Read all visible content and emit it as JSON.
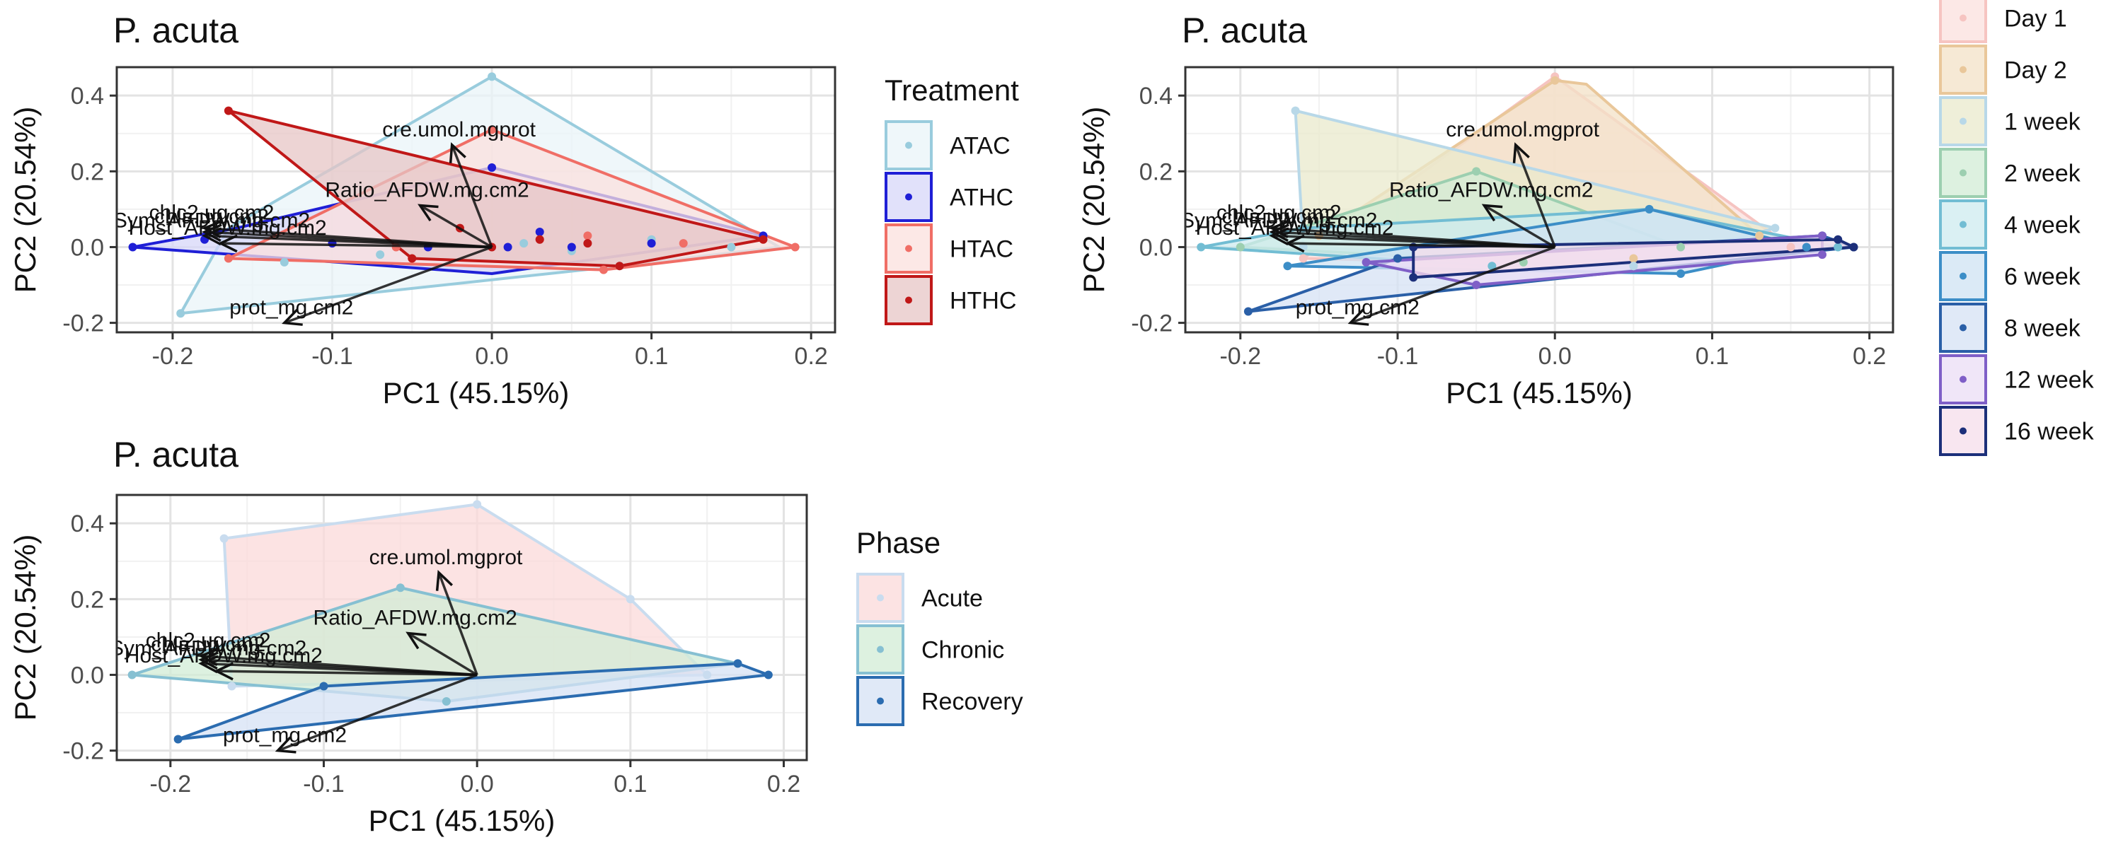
{
  "chart_data": [
    {
      "type": "scatter",
      "title": "P. acuta",
      "xlabel": "PC1 (45.15%)",
      "ylabel": "PC2 (20.54%)",
      "xlim": [
        -0.235,
        0.215
      ],
      "ylim": [
        -0.225,
        0.475
      ],
      "x_ticks": [
        -0.2,
        -0.1,
        0.0,
        0.1,
        0.2
      ],
      "x_tick_labels": [
        "-0.2",
        "-0.1",
        "0.0",
        "0.1",
        "0.2"
      ],
      "y_ticks": [
        -0.2,
        0.0,
        0.2,
        0.4
      ],
      "y_tick_labels": [
        "-0.2",
        "0.0",
        "0.2",
        "0.4"
      ],
      "grid": true,
      "legend_title": "Treatment",
      "legend_position": "right",
      "series": [
        {
          "name": "ATAC",
          "color": "#99CCDD",
          "fill": "#EAF4F8",
          "hull": [
            [
              -0.195,
              -0.175
            ],
            [
              0.08,
              -0.05
            ],
            [
              0.18,
              0.0
            ],
            [
              0.0,
              0.45
            ],
            [
              -0.165,
              0.05
            ]
          ],
          "points": [
            [
              -0.195,
              -0.175
            ],
            [
              -0.13,
              -0.04
            ],
            [
              -0.07,
              -0.02
            ],
            [
              0.0,
              0.45
            ],
            [
              0.02,
              0.01
            ],
            [
              0.05,
              -0.01
            ],
            [
              0.08,
              -0.05
            ],
            [
              0.1,
              0.02
            ],
            [
              0.15,
              0.0
            ]
          ]
        },
        {
          "name": "ATHC",
          "color": "#1F1FD6",
          "fill": "#D7D7F8",
          "hull": [
            [
              -0.225,
              0.0
            ],
            [
              0.0,
              -0.07
            ],
            [
              0.17,
              0.03
            ],
            [
              0.0,
              0.21
            ],
            [
              -0.16,
              0.05
            ]
          ],
          "points": [
            [
              -0.225,
              0.0
            ],
            [
              -0.18,
              0.02
            ],
            [
              -0.1,
              0.01
            ],
            [
              -0.04,
              0.0
            ],
            [
              0.0,
              0.21
            ],
            [
              0.01,
              0.0
            ],
            [
              0.03,
              0.04
            ],
            [
              0.05,
              0.0
            ],
            [
              0.1,
              0.01
            ],
            [
              0.17,
              0.03
            ]
          ]
        },
        {
          "name": "HTAC",
          "color": "#F06E66",
          "fill": "#FBE0DE",
          "hull": [
            [
              -0.165,
              -0.03
            ],
            [
              0.0,
              0.31
            ],
            [
              0.19,
              0.0
            ],
            [
              0.07,
              -0.06
            ]
          ],
          "points": [
            [
              -0.165,
              -0.03
            ],
            [
              -0.06,
              0.0
            ],
            [
              0.0,
              0.31
            ],
            [
              0.03,
              0.02
            ],
            [
              0.06,
              0.03
            ],
            [
              0.07,
              -0.06
            ],
            [
              0.12,
              0.01
            ],
            [
              0.19,
              0.0
            ]
          ]
        },
        {
          "name": "HTHC",
          "color": "#C01818",
          "fill": "#E7C5C5",
          "hull": [
            [
              -0.165,
              0.36
            ],
            [
              0.17,
              0.02
            ],
            [
              0.08,
              -0.05
            ],
            [
              -0.05,
              -0.03
            ]
          ],
          "points": [
            [
              -0.165,
              0.36
            ],
            [
              -0.05,
              -0.03
            ],
            [
              -0.02,
              0.05
            ],
            [
              0.0,
              0.0
            ],
            [
              0.03,
              0.02
            ],
            [
              0.06,
              0.01
            ],
            [
              0.08,
              -0.05
            ],
            [
              0.17,
              0.02
            ]
          ]
        }
      ],
      "loadings": [
        {
          "label": "cre.umol.mgprot",
          "x": -0.025,
          "y": 0.27
        },
        {
          "label": "Ratio_AFDW.mg.cm2",
          "x": -0.045,
          "y": 0.11
        },
        {
          "label": "Sym_AFDW.mg.cm2",
          "x": -0.18,
          "y": 0.03
        },
        {
          "label": "chlc2.ug.cm2",
          "x": -0.18,
          "y": 0.05
        },
        {
          "label": "chla.ug.cm2",
          "x": -0.18,
          "y": 0.04
        },
        {
          "label": "Host_AFDW.mg.cm2",
          "x": -0.17,
          "y": 0.01
        },
        {
          "label": "prot_mg.cm2",
          "x": -0.13,
          "y": -0.2
        }
      ]
    },
    {
      "type": "scatter",
      "title": "P. acuta",
      "xlabel": "PC1 (45.15%)",
      "ylabel": "PC2 (20.54%)",
      "xlim": [
        -0.235,
        0.215
      ],
      "ylim": [
        -0.225,
        0.475
      ],
      "x_ticks": [
        -0.2,
        -0.1,
        0.0,
        0.1,
        0.2
      ],
      "x_tick_labels": [
        "-0.2",
        "-0.1",
        "0.0",
        "0.1",
        "0.2"
      ],
      "y_ticks": [
        -0.2,
        0.0,
        0.2,
        0.4
      ],
      "y_tick_labels": [
        "-0.2",
        "0.0",
        "0.2",
        "0.4"
      ],
      "grid": true,
      "legend_title": "",
      "legend_position": "right",
      "series": [
        {
          "name": "Day 1",
          "color": "#F6C4C1",
          "fill": "#FBE0DE",
          "hull": [
            [
              -0.16,
              -0.03
            ],
            [
              0.0,
              0.45
            ],
            [
              0.15,
              0.0
            ],
            [
              0.05,
              -0.05
            ]
          ],
          "points": [
            [
              -0.16,
              -0.03
            ],
            [
              0.0,
              0.45
            ],
            [
              0.05,
              -0.05
            ],
            [
              0.15,
              0.0
            ]
          ]
        },
        {
          "name": "Day 2",
          "color": "#E9C79A",
          "fill": "#F3E1C7",
          "hull": [
            [
              -0.15,
              0.03
            ],
            [
              0.0,
              0.44
            ],
            [
              0.02,
              0.43
            ],
            [
              0.13,
              0.03
            ],
            [
              0.05,
              -0.03
            ]
          ],
          "points": [
            [
              -0.15,
              0.03
            ],
            [
              0.0,
              0.44
            ],
            [
              0.05,
              -0.03
            ],
            [
              0.13,
              0.03
            ]
          ]
        },
        {
          "name": "1 week",
          "color": "#B8D8E8",
          "fill": "#EAEACC",
          "hull": [
            [
              -0.165,
              0.36
            ],
            [
              0.14,
              0.05
            ],
            [
              0.05,
              -0.05
            ],
            [
              -0.16,
              0.0
            ]
          ],
          "points": [
            [
              -0.165,
              0.36
            ],
            [
              -0.16,
              0.0
            ],
            [
              0.05,
              -0.05
            ],
            [
              0.14,
              0.05
            ]
          ]
        },
        {
          "name": "2 week",
          "color": "#9CCFB0",
          "fill": "#D1ECD6",
          "hull": [
            [
              -0.2,
              0.0
            ],
            [
              -0.05,
              0.2
            ],
            [
              0.08,
              0.0
            ],
            [
              -0.02,
              -0.04
            ]
          ],
          "points": [
            [
              -0.2,
              0.0
            ],
            [
              -0.05,
              0.2
            ],
            [
              -0.02,
              -0.04
            ],
            [
              0.08,
              0.0
            ]
          ]
        },
        {
          "name": "4 week",
          "color": "#72BDD3",
          "fill": "#CDEBEF",
          "hull": [
            [
              -0.225,
              0.0
            ],
            [
              -0.16,
              0.05
            ],
            [
              0.06,
              0.1
            ],
            [
              0.18,
              0.0
            ],
            [
              -0.04,
              -0.05
            ]
          ],
          "points": [
            [
              -0.225,
              0.0
            ],
            [
              -0.16,
              0.05
            ],
            [
              -0.04,
              -0.05
            ],
            [
              0.06,
              0.1
            ],
            [
              0.18,
              0.0
            ]
          ]
        },
        {
          "name": "6 week",
          "color": "#3C8EC7",
          "fill": "#CFE3F3",
          "hull": [
            [
              -0.17,
              -0.05
            ],
            [
              0.06,
              0.1
            ],
            [
              0.16,
              0.0
            ],
            [
              0.08,
              -0.07
            ]
          ],
          "points": [
            [
              -0.17,
              -0.05
            ],
            [
              0.06,
              0.1
            ],
            [
              0.08,
              -0.07
            ],
            [
              0.16,
              0.0
            ]
          ]
        },
        {
          "name": "8 week",
          "color": "#2A5FA7",
          "fill": "#D6E2F4",
          "hull": [
            [
              -0.195,
              -0.17
            ],
            [
              0.19,
              0.0
            ],
            [
              0.17,
              0.03
            ],
            [
              -0.1,
              -0.03
            ]
          ],
          "points": [
            [
              -0.195,
              -0.17
            ],
            [
              -0.1,
              -0.03
            ],
            [
              0.17,
              0.03
            ],
            [
              0.19,
              0.0
            ]
          ]
        },
        {
          "name": "12 week",
          "color": "#7F5FC7",
          "fill": "#EBDDF6",
          "hull": [
            [
              -0.12,
              -0.04
            ],
            [
              0.17,
              0.03
            ],
            [
              0.17,
              -0.02
            ],
            [
              -0.05,
              -0.1
            ]
          ],
          "points": [
            [
              -0.12,
              -0.04
            ],
            [
              -0.05,
              -0.1
            ],
            [
              0.17,
              -0.02
            ],
            [
              0.17,
              0.03
            ]
          ]
        },
        {
          "name": "16 week",
          "color": "#1C2F7A",
          "fill": "#F6DDEB",
          "hull": [
            [
              -0.09,
              -0.08
            ],
            [
              0.19,
              0.0
            ],
            [
              0.18,
              0.02
            ],
            [
              -0.09,
              0.0
            ]
          ],
          "points": [
            [
              -0.09,
              -0.08
            ],
            [
              -0.09,
              0.0
            ],
            [
              0.18,
              0.02
            ],
            [
              0.19,
              0.0
            ]
          ]
        }
      ],
      "loadings": [
        {
          "label": "cre.umol.mgprot",
          "x": -0.025,
          "y": 0.27
        },
        {
          "label": "Ratio_AFDW.mg.cm2",
          "x": -0.045,
          "y": 0.11
        },
        {
          "label": "Sym_AFDW.mg.cm2",
          "x": -0.18,
          "y": 0.03
        },
        {
          "label": "chlc2.ug.cm2",
          "x": -0.18,
          "y": 0.05
        },
        {
          "label": "chla.ug.cm2",
          "x": -0.18,
          "y": 0.04
        },
        {
          "label": "Host_AFDW.mg.cm2",
          "x": -0.17,
          "y": 0.01
        },
        {
          "label": "prot_mg.cm2",
          "x": -0.13,
          "y": -0.2
        }
      ]
    },
    {
      "type": "scatter",
      "title": "P. acuta",
      "xlabel": "PC1 (45.15%)",
      "ylabel": "PC2 (20.54%)",
      "xlim": [
        -0.235,
        0.215
      ],
      "ylim": [
        -0.225,
        0.475
      ],
      "x_ticks": [
        -0.2,
        -0.1,
        0.0,
        0.1,
        0.2
      ],
      "x_tick_labels": [
        "-0.2",
        "-0.1",
        "0.0",
        "0.1",
        "0.2"
      ],
      "y_ticks": [
        -0.2,
        0.0,
        0.2,
        0.4
      ],
      "y_tick_labels": [
        "-0.2",
        "0.0",
        "0.2",
        "0.4"
      ],
      "grid": true,
      "legend_title": "Phase",
      "legend_position": "right",
      "series": [
        {
          "name": "Acute",
          "color": "#C9DCEF",
          "fill": "#FBDADA",
          "hull": [
            [
              -0.165,
              0.36
            ],
            [
              0.0,
              0.45
            ],
            [
              0.1,
              0.2
            ],
            [
              0.15,
              0.0
            ],
            [
              -0.16,
              -0.03
            ]
          ],
          "points": [
            [
              -0.165,
              0.36
            ],
            [
              0.0,
              0.45
            ],
            [
              0.1,
              0.2
            ],
            [
              0.15,
              0.0
            ],
            [
              -0.16,
              -0.03
            ]
          ]
        },
        {
          "name": "Chronic",
          "color": "#86C0D2",
          "fill": "#D1ECD6",
          "hull": [
            [
              -0.225,
              0.0
            ],
            [
              -0.05,
              0.23
            ],
            [
              0.17,
              0.03
            ],
            [
              -0.02,
              -0.07
            ]
          ],
          "points": [
            [
              -0.225,
              0.0
            ],
            [
              -0.05,
              0.23
            ],
            [
              -0.02,
              -0.07
            ],
            [
              0.17,
              0.03
            ]
          ]
        },
        {
          "name": "Recovery",
          "color": "#2B6CB0",
          "fill": "#D6E2F4",
          "hull": [
            [
              -0.195,
              -0.17
            ],
            [
              0.19,
              0.0
            ],
            [
              0.17,
              0.03
            ],
            [
              -0.1,
              -0.03
            ]
          ],
          "points": [
            [
              -0.195,
              -0.17
            ],
            [
              -0.1,
              -0.03
            ],
            [
              0.17,
              0.03
            ],
            [
              0.19,
              0.0
            ]
          ]
        }
      ],
      "loadings": [
        {
          "label": "cre.umol.mgprot",
          "x": -0.025,
          "y": 0.27
        },
        {
          "label": "Ratio_AFDW.mg.cm2",
          "x": -0.045,
          "y": 0.11
        },
        {
          "label": "Sym_AFDW.mg.cm2",
          "x": -0.18,
          "y": 0.03
        },
        {
          "label": "chlc2.ug.cm2",
          "x": -0.18,
          "y": 0.05
        },
        {
          "label": "chla.ug.cm2",
          "x": -0.18,
          "y": 0.04
        },
        {
          "label": "Host_AFDW.mg.cm2",
          "x": -0.17,
          "y": 0.01
        },
        {
          "label": "prot_mg.cm2",
          "x": -0.13,
          "y": -0.2
        }
      ]
    }
  ]
}
